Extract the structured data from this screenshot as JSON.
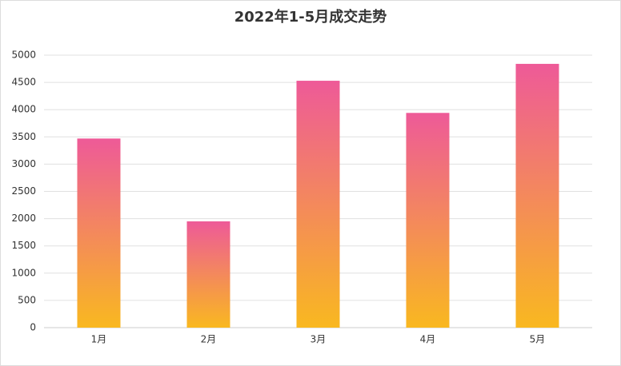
{
  "chart_data": {
    "type": "bar",
    "title": "2022年1-5月成交走势",
    "categories": [
      "1月",
      "2月",
      "3月",
      "4月",
      "5月"
    ],
    "values": [
      3470,
      1950,
      4530,
      3940,
      4840
    ],
    "gradient_colors": [
      "#ee5a98",
      "#f9b820"
    ],
    "ylim": [
      0,
      5000
    ],
    "yticks": [
      0,
      500,
      1000,
      1500,
      2000,
      2500,
      3000,
      3500,
      4000,
      4500,
      5000
    ],
    "grid": true
  }
}
